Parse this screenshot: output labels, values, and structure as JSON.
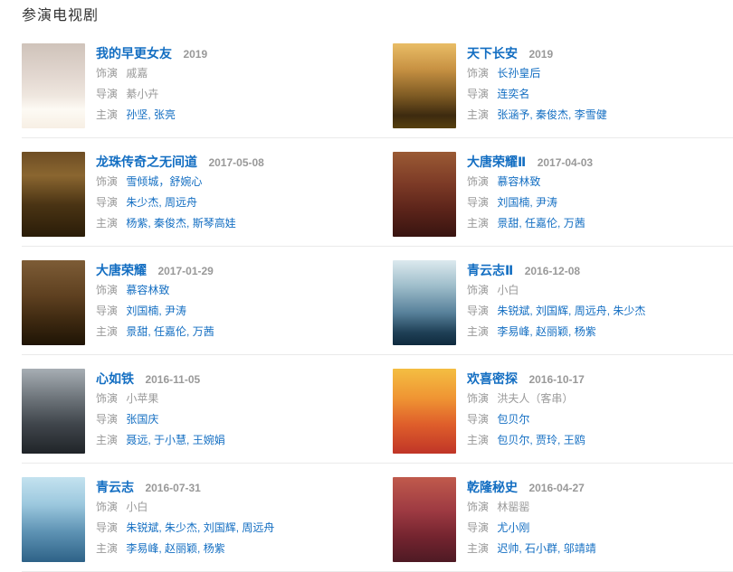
{
  "accent_color": "#136ec2",
  "muted_text_color": "#999999",
  "section": {
    "title": "参演电视剧",
    "labels": {
      "role": "饰演",
      "director": "导演",
      "cast": "主演"
    },
    "items": [
      {
        "title": "我的早更女友",
        "date": "2019",
        "role": "戚嘉",
        "role_link": "false",
        "director": "綦小卉",
        "director_link": "false",
        "cast": "孙坚, 张亮"
      },
      {
        "title": "天下长安",
        "date": "2019",
        "role": "长孙皇后",
        "role_link": "true",
        "director": "连奕名",
        "director_link": "true",
        "cast": "张涵予, 秦俊杰, 李雪健"
      },
      {
        "title": "龙珠传奇之无间道",
        "date": "2017-05-08",
        "role": "雪倾城，舒婉心",
        "role_link": "true",
        "director": "朱少杰, 周远舟",
        "director_link": "true",
        "cast": "杨紫, 秦俊杰, 斯琴高娃"
      },
      {
        "title": "大唐荣耀Ⅱ",
        "date": "2017-04-03",
        "role": "慕容林致",
        "role_link": "true",
        "director": "刘国楠, 尹涛",
        "director_link": "true",
        "cast": "景甜, 任嘉伦, 万茜"
      },
      {
        "title": "大唐荣耀",
        "date": "2017-01-29",
        "role": "慕容林致",
        "role_link": "true",
        "director": "刘国楠, 尹涛",
        "director_link": "true",
        "cast": "景甜, 任嘉伦, 万茜"
      },
      {
        "title": "青云志Ⅱ",
        "date": "2016-12-08",
        "role": "小白",
        "role_link": "false",
        "director": "朱锐斌, 刘国辉, 周远舟, 朱少杰",
        "director_link": "true",
        "cast": "李易峰, 赵丽颖, 杨紫"
      },
      {
        "title": "心如铁",
        "date": "2016-11-05",
        "role": "小苹果",
        "role_link": "false",
        "director": "张国庆",
        "director_link": "true",
        "cast": "聂远, 于小慧, 王婉娟"
      },
      {
        "title": "欢喜密探",
        "date": "2016-10-17",
        "role": "洪夫人（客串）",
        "role_link": "false",
        "director": "包贝尔",
        "director_link": "true",
        "cast": "包贝尔, 贾玲, 王鸥"
      },
      {
        "title": "青云志",
        "date": "2016-07-31",
        "role": "小白",
        "role_link": "false",
        "director": "朱锐斌, 朱少杰, 刘国辉, 周远舟",
        "director_link": "true",
        "cast": "李易峰, 赵丽颖, 杨紫"
      },
      {
        "title": "乾隆秘史",
        "date": "2016-04-27",
        "role": "林罂罂",
        "role_link": "false",
        "director": "尤小刚",
        "director_link": "true",
        "cast": "迟帅, 石小群, 邬靖靖"
      }
    ]
  }
}
